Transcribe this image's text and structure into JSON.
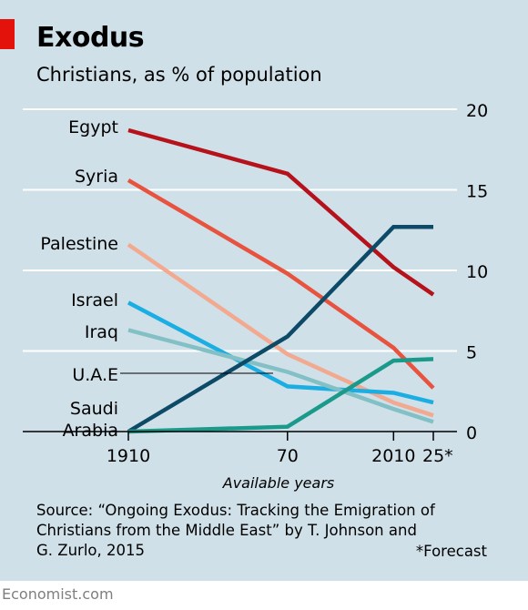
{
  "chart_data": {
    "type": "line",
    "title": "Exodus",
    "subtitle": "Christians, as % of population",
    "xlabel": "Available years",
    "ylabel": "",
    "x": [
      1910,
      1970,
      2010,
      2025
    ],
    "x_tick_labels": [
      "1910",
      "70",
      "2010",
      "25*"
    ],
    "ylim": [
      0,
      20
    ],
    "y_ticks": [
      0,
      5,
      10,
      15,
      20
    ],
    "y_axis_position": "right",
    "grid": "horizontal",
    "legend": "labels at left edge of lines",
    "series": [
      {
        "name": "Egypt",
        "color": "#b5121b",
        "values": [
          18.7,
          16.0,
          10.2,
          8.5
        ]
      },
      {
        "name": "Syria",
        "color": "#e8533f",
        "values": [
          15.6,
          9.8,
          5.2,
          2.7
        ]
      },
      {
        "name": "Palestine",
        "color": "#f2a98f",
        "values": [
          11.6,
          4.8,
          1.8,
          1.0
        ]
      },
      {
        "name": "Israel",
        "color": "#1aaee3",
        "values": [
          8.0,
          2.8,
          2.4,
          1.8
        ]
      },
      {
        "name": "Iraq",
        "color": "#82c0c5",
        "values": [
          6.3,
          3.7,
          1.4,
          0.6
        ]
      },
      {
        "name": "U.A.E",
        "color": "#0c4a68",
        "values": [
          0.0,
          5.9,
          12.7,
          12.7
        ]
      },
      {
        "name": "Saudi Arabia",
        "color": "#1a9a8a",
        "values": [
          0.0,
          0.3,
          4.4,
          4.5
        ]
      }
    ],
    "axis_color": "#000000",
    "grid_color": "#ffffff"
  },
  "brand": {
    "color": "#e3120b",
    "footer": "Economist.com"
  },
  "source": "Source: “Ongoing Exodus: Tracking the Emigration of Christians from the Middle East” by T. Johnson and G. Zurlo, 2015",
  "footnote": "*Forecast",
  "labels": {
    "egypt": "Egypt",
    "syria": "Syria",
    "palestine": "Palestine",
    "israel": "Israel",
    "iraq": "Iraq",
    "uae": "U.A.E",
    "saudi_1": "Saudi",
    "saudi_2": "Arabia"
  }
}
